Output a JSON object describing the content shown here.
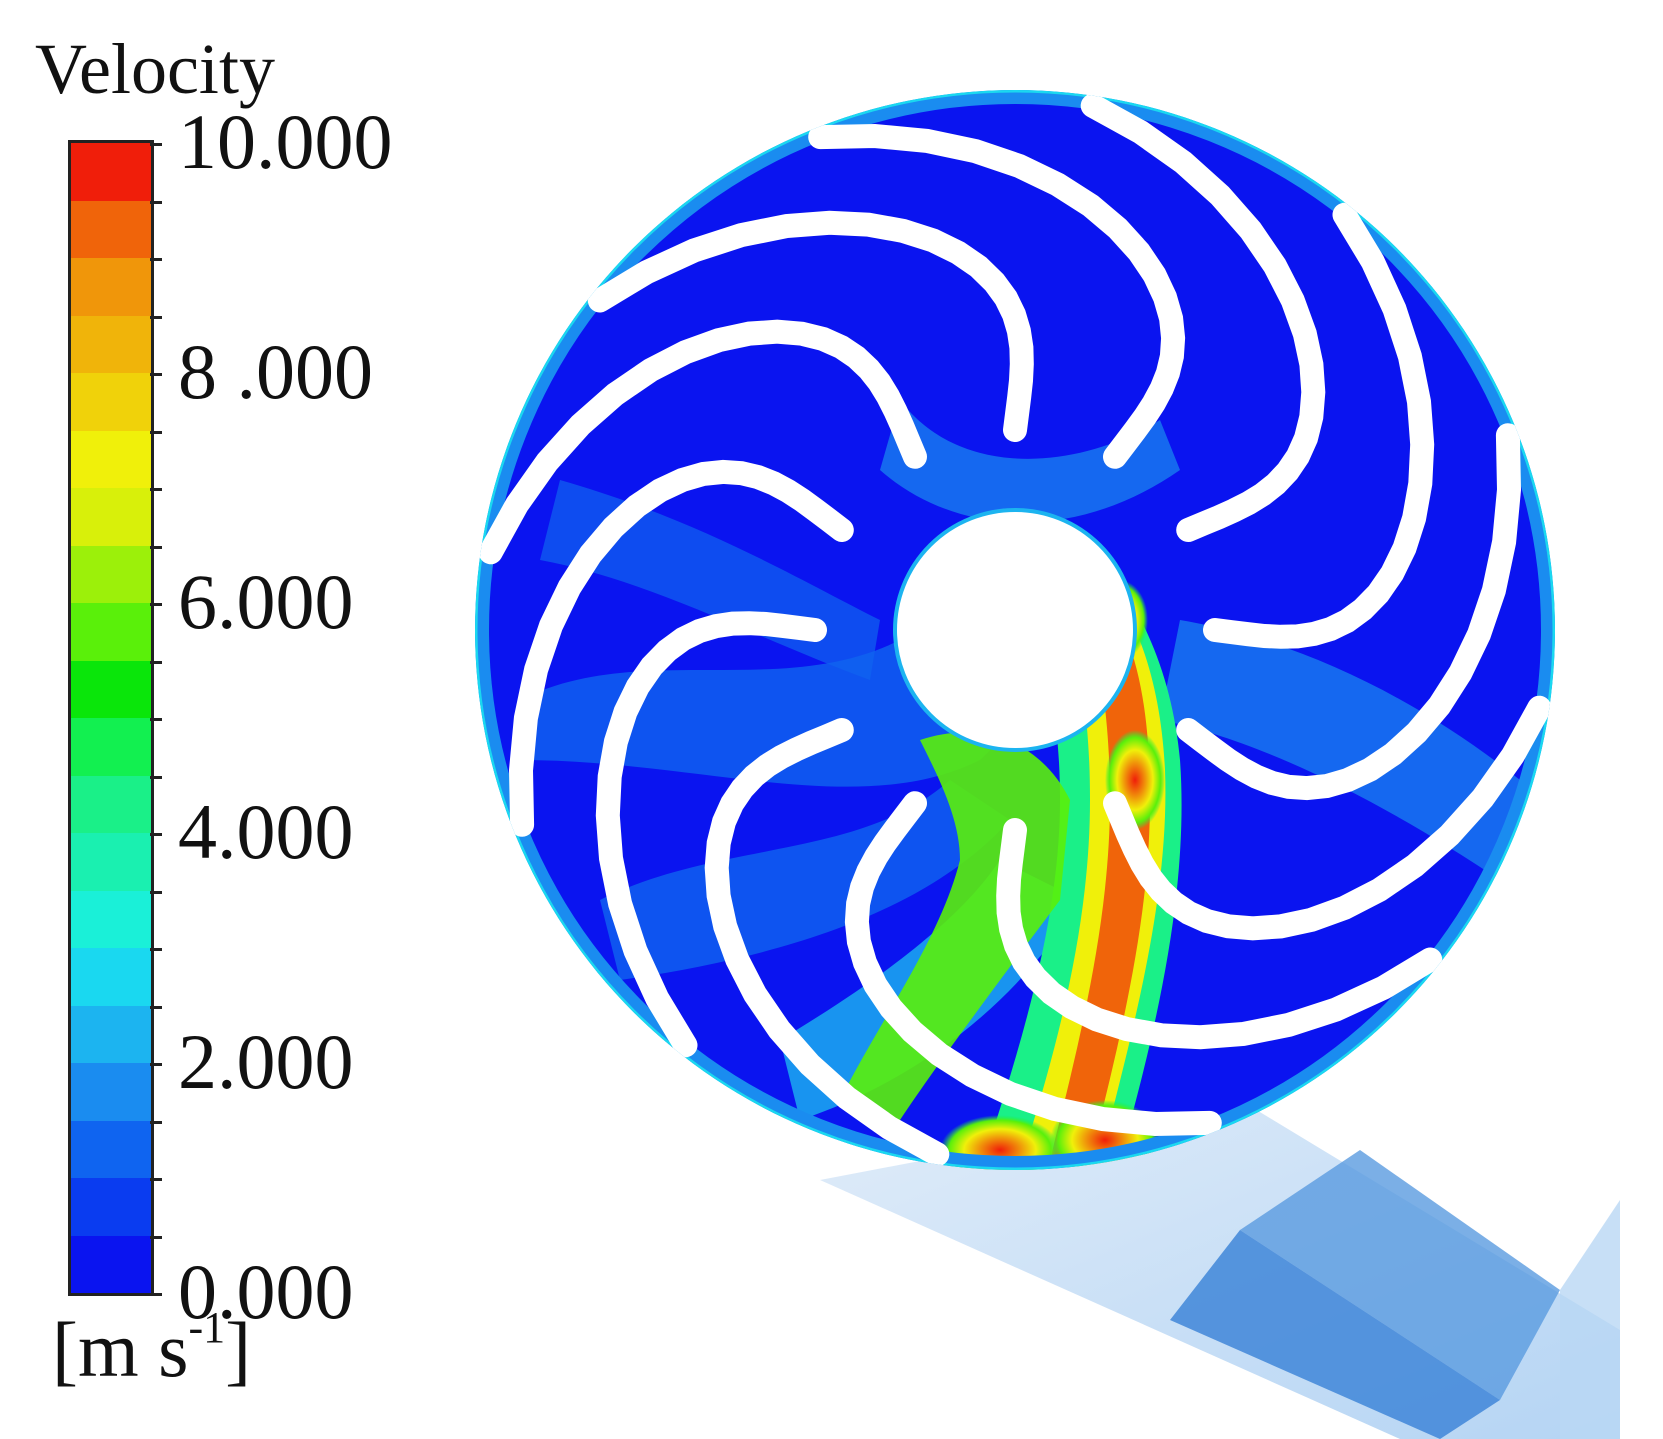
{
  "legend": {
    "title": "Velocity",
    "unit_main": "[m s",
    "unit_exp": "-1",
    "unit_end": "]",
    "ticks": [
      {
        "value": 10,
        "label": "10.000"
      },
      {
        "value": 8,
        "label": "8 .000"
      },
      {
        "value": 6,
        "label": "6.000"
      },
      {
        "value": 4,
        "label": "4.000"
      },
      {
        "value": 2,
        "label": "2.000"
      },
      {
        "value": 0,
        "label": "0.000"
      }
    ],
    "range": [
      0,
      10
    ],
    "colors": [
      "#0a14f0",
      "#0a3cf0",
      "#0f64f0",
      "#1a8cf0",
      "#1cb4f0",
      "#1ad8f0",
      "#1af0d8",
      "#1af0b0",
      "#1af088",
      "#12f050",
      "#0ae60a",
      "#5af00a",
      "#9cf00a",
      "#d8f00a",
      "#f0f00a",
      "#f0d20a",
      "#f0b40a",
      "#f0960a",
      "#f0640a",
      "#f01e0a"
    ]
  },
  "impeller": {
    "blade_count": 12,
    "hub_color": "#ffffff",
    "background_color": "#0a14f0",
    "rim_color": "#1ad8f0"
  }
}
